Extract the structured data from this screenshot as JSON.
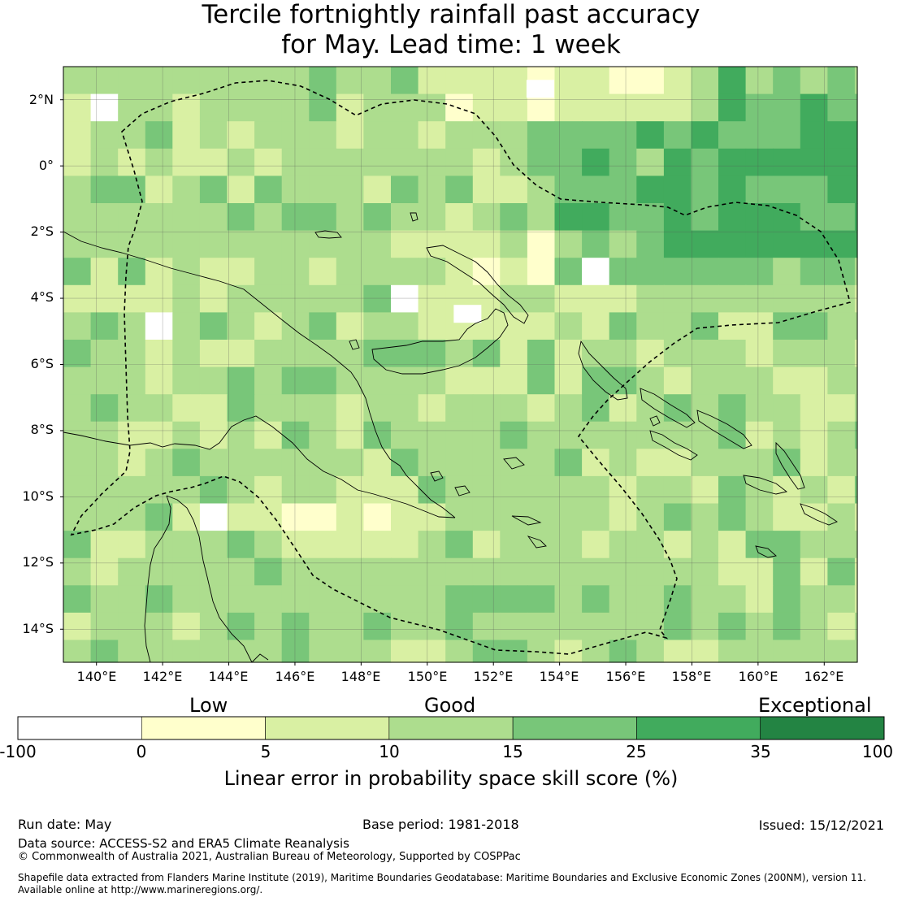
{
  "title": {
    "line1": "Tercile fortnightly rainfall past accuracy",
    "line2": "for May. Lead time: 1 week"
  },
  "map": {
    "lat_labels": [
      "2°N",
      "0°",
      "2°S",
      "4°S",
      "6°S",
      "8°S",
      "10°S",
      "12°S",
      "14°S"
    ],
    "lon_labels": [
      "140°E",
      "142°E",
      "144°E",
      "146°E",
      "148°E",
      "150°E",
      "152°E",
      "154°E",
      "156°E",
      "158°E",
      "160°E",
      "162°E"
    ],
    "extent": {
      "lon_min": 139,
      "lon_max": 163,
      "lat_min": -15,
      "lat_max": 3
    }
  },
  "colorbar": {
    "category_labels": [
      "Low",
      "Good",
      "Exceptional"
    ],
    "ticks": [
      "-100",
      "0",
      "5",
      "10",
      "15",
      "25",
      "35",
      "100"
    ],
    "bins": [
      {
        "range": "-100 to 0",
        "color": "#ffffff"
      },
      {
        "range": "0 to 5",
        "color": "#ffffcc"
      },
      {
        "range": "5 to 10",
        "color": "#d9f0a3"
      },
      {
        "range": "10 to 15",
        "color": "#addd8e"
      },
      {
        "range": "15 to 25",
        "color": "#78c679"
      },
      {
        "range": "25 to 35",
        "color": "#41ab5d"
      },
      {
        "range": "35 to 100",
        "color": "#238443"
      }
    ],
    "title": "Linear error in probability space skill score (%)"
  },
  "footer": {
    "run_date": "Run date: May",
    "base_period": "Base period: 1981-2018",
    "issued": "Issued: 15/12/2021",
    "data_source": "Data source: ACCESS-S2 and ERA5 Climate Reanalysis",
    "copyright": "© Commonwealth of Australia 2021, Australian Bureau of Meteorology, Supported by COSPPac",
    "shapefile_line1": "Shapefile data extracted from Flanders Marine Institute (2019), Maritime Boundaries Geodatabase: Maritime Boundaries and Exclusive Economic Zones (200NM), version 11.",
    "shapefile_line2": "Available online at http://www.marineregions.org/."
  }
}
